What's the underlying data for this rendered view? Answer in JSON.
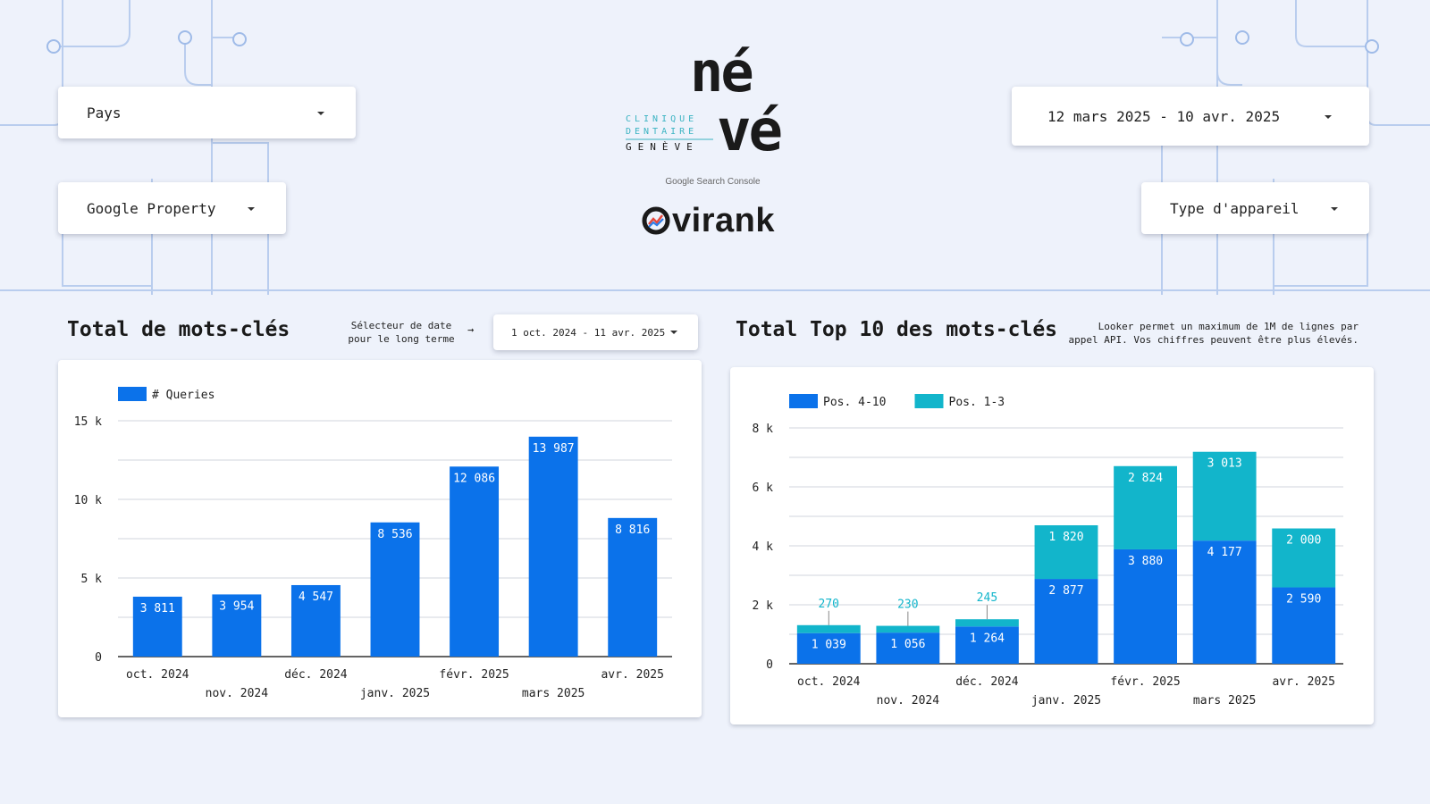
{
  "filters": {
    "country_label": "Pays",
    "property_label": "Google Property",
    "date_range": "12 mars 2025 - 10 avr. 2025",
    "device_label": "Type d'appareil"
  },
  "branding": {
    "logo_top": "né",
    "logo_bottom": "vé",
    "logo_sub1": "CLINIQUE",
    "logo_sub2": "DENTAIRE",
    "logo_city": "GENÈVE",
    "gsc_label": "Google Search Console",
    "agency_name": "virank"
  },
  "left_section": {
    "title": "Total de mots-clés",
    "date_selector_note_line1": "Sélecteur de date",
    "date_selector_note_line2": "pour le long terme",
    "arrow": "→",
    "long_term_date": "1 oct. 2024 - 11 avr. 2025"
  },
  "right_section": {
    "title": "Total Top 10 des mots-clés",
    "note_line1": "Looker permet un maximum de 1M de lignes par",
    "note_line2": "appel API. Vos chiffres peuvent être plus élevés."
  },
  "colors": {
    "blue": "#0b72ea",
    "teal": "#12b5cb",
    "grid": "#d9dde3"
  },
  "chart_data": [
    {
      "type": "bar",
      "categories": [
        "oct. 2024",
        "nov. 2024",
        "déc. 2024",
        "janv. 2025",
        "févr. 2025",
        "mars 2025",
        "avr. 2025"
      ],
      "series": [
        {
          "name": "# Queries",
          "values": [
            3811,
            3954,
            4547,
            8536,
            12086,
            13987,
            8816
          ],
          "labels": [
            "3 811",
            "3 954",
            "4 547",
            "8 536",
            "12 086",
            "13 987",
            "8 816"
          ]
        }
      ],
      "ylim": [
        0,
        15000
      ],
      "yticks": [
        0,
        5000,
        10000,
        15000
      ],
      "ytick_labels": [
        "0",
        "5 k",
        "10 k",
        "15 k"
      ],
      "grid": true,
      "legend": "top-left"
    },
    {
      "type": "bar",
      "stacked": true,
      "categories": [
        "oct. 2024",
        "nov. 2024",
        "déc. 2024",
        "janv. 2025",
        "févr. 2025",
        "mars 2025",
        "avr. 2025"
      ],
      "series": [
        {
          "name": "Pos. 4-10",
          "values": [
            1039,
            1056,
            1264,
            2877,
            3880,
            4177,
            2590
          ],
          "labels": [
            "1 039",
            "1 056",
            "1 264",
            "2 877",
            "3 880",
            "4 177",
            "2 590"
          ]
        },
        {
          "name": "Pos. 1-3",
          "values": [
            270,
            230,
            245,
            1820,
            2824,
            3013,
            2000
          ],
          "labels": [
            "270",
            "230",
            "245",
            "1 820",
            "2 824",
            "3 013",
            "2 000"
          ]
        }
      ],
      "ylim": [
        0,
        8000
      ],
      "yticks": [
        0,
        2000,
        4000,
        6000,
        8000
      ],
      "ytick_labels": [
        "0",
        "2 k",
        "4 k",
        "6 k",
        "8 k"
      ],
      "grid": true,
      "legend": "top-left"
    }
  ]
}
